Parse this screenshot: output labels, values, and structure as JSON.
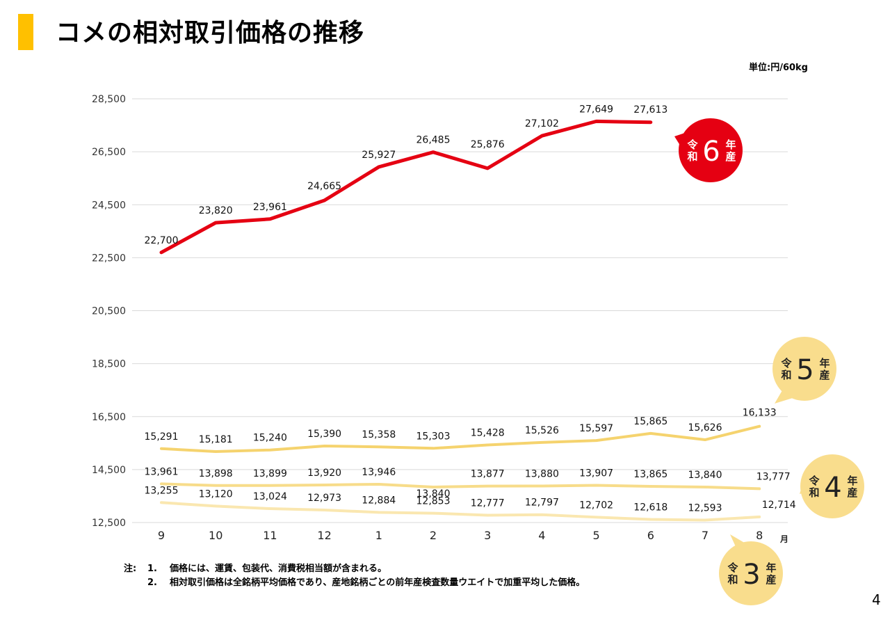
{
  "page": {
    "title": "コメの相対取引価格の推移",
    "unit": "単位:円/60kg",
    "page_number": "4",
    "notes_label": "注:",
    "notes": [
      {
        "num": "1.",
        "text": "価格には、運賃、包装代、消費税相当額が含まれる。"
      },
      {
        "num": "2.",
        "text": "相対取引価格は全銘柄平均価格であり、産地銘柄ごとの前年産検査数量ウエイトで加重平均した価格。"
      }
    ],
    "accent_color": "#ffc000"
  },
  "chart_data": {
    "type": "line",
    "categories": [
      "9",
      "10",
      "11",
      "12",
      "1",
      "2",
      "3",
      "4",
      "5",
      "6",
      "7",
      "8"
    ],
    "x_unit": "月",
    "ylim": [
      12500,
      28500
    ],
    "yticks": [
      12500,
      14500,
      16500,
      18500,
      20500,
      22500,
      24500,
      26500,
      28500
    ],
    "ytick_labels": [
      "12,500",
      "14,500",
      "16,500",
      "18,500",
      "20,500",
      "22,500",
      "24,500",
      "26,500",
      "28,500"
    ],
    "grid": true,
    "series": [
      {
        "key": "r6",
        "name": "令和6年産",
        "badge_top": "令",
        "badge_bottom": "和",
        "badge_num": "6",
        "badge_right_top": "年",
        "badge_right_bottom": "産",
        "color": "#e50012",
        "values": [
          22700,
          23820,
          23961,
          24665,
          25927,
          26485,
          25876,
          27102,
          27649,
          27613,
          null,
          null
        ],
        "labels": [
          "22,700",
          "23,820",
          "23,961",
          "24,665",
          "25,927",
          "26,485",
          "25,876",
          "27,102",
          "27,649",
          "27,613",
          "",
          ""
        ]
      },
      {
        "key": "r5",
        "name": "令和5年産",
        "badge_top": "令",
        "badge_bottom": "和",
        "badge_num": "5",
        "badge_right_top": "年",
        "badge_right_bottom": "産",
        "color": "#f5d36e",
        "values": [
          15291,
          15181,
          15240,
          15390,
          15358,
          15303,
          15428,
          15526,
          15597,
          15865,
          15626,
          16133
        ],
        "labels": [
          "15,291",
          "15,181",
          "15,240",
          "15,390",
          "15,358",
          "15,303",
          "15,428",
          "15,526",
          "15,597",
          "15,865",
          "15,626",
          "16,133"
        ]
      },
      {
        "key": "r4",
        "name": "令和4年産",
        "badge_top": "令",
        "badge_bottom": "和",
        "badge_num": "4",
        "badge_right_top": "年",
        "badge_right_bottom": "産",
        "color": "#f7dc8a",
        "values": [
          13961,
          13898,
          13899,
          13920,
          13946,
          13840,
          13877,
          13880,
          13907,
          13865,
          13840,
          13777
        ],
        "labels": [
          "13,961",
          "13,898",
          "13,899",
          "13,920",
          "13,946",
          "13,840",
          "13,877",
          "13,880",
          "13,907",
          "13,865",
          "13,840",
          "13,777"
        ]
      },
      {
        "key": "r3",
        "name": "令和3年産",
        "badge_top": "令",
        "badge_bottom": "和",
        "badge_num": "3",
        "badge_right_top": "年",
        "badge_right_bottom": "産",
        "color": "#fae7b0",
        "values": [
          13255,
          13120,
          13024,
          12973,
          12884,
          12853,
          12777,
          12797,
          12702,
          12618,
          12593,
          12714
        ],
        "labels": [
          "13,255",
          "13,120",
          "13,024",
          "12,973",
          "12,884",
          "12,853",
          "12,777",
          "12,797",
          "12,702",
          "12,618",
          "12,593",
          "12,714"
        ]
      }
    ]
  }
}
